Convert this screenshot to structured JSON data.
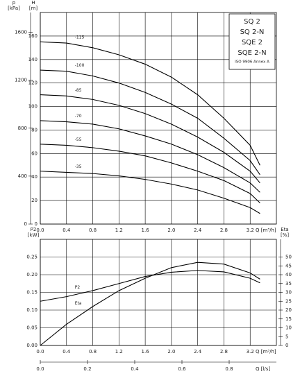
{
  "chart_data": [
    {
      "type": "line",
      "ylabel": "H",
      "ylabel_unit": "[m]",
      "y2label": "p",
      "y2label_unit": "[kPa]",
      "y2_side": "left",
      "xlabel": "Q [m³/h]",
      "annotations": [
        "SQ 2",
        "SQ 2-N",
        "SQE 2",
        "SQE 2-N",
        "ISO 9906 Annex A"
      ],
      "xlim": [
        0,
        3.6
      ],
      "xticks": [
        {
          "value": 0,
          "label": "0.0"
        },
        0.4,
        0.8,
        1.2,
        1.6,
        {
          "value": 2,
          "label": "2.0"
        },
        2.4,
        2.8,
        3.2
      ],
      "ylim": [
        0,
        180
      ],
      "yticks": [
        0,
        20,
        40,
        60,
        80,
        100,
        120,
        140,
        160
      ],
      "y2lim": [
        0,
        1765
      ],
      "y2ticks": [
        0,
        400,
        800,
        1200,
        1600
      ],
      "grid": true,
      "x": [
        0,
        0.4,
        0.8,
        1.2,
        1.6,
        2.0,
        2.4,
        2.8,
        3.2,
        3.35
      ],
      "series": [
        {
          "name": "-115",
          "color": "#000000",
          "values": [
            155,
            154,
            150,
            144,
            136,
            125,
            110,
            90,
            67,
            50
          ]
        },
        {
          "name": "-100",
          "color": "#000000",
          "values": [
            131,
            130,
            126,
            120,
            112,
            102,
            90,
            73,
            54,
            42
          ]
        },
        {
          "name": "-85",
          "color": "#000000",
          "values": [
            110,
            109,
            106,
            101,
            94,
            85,
            74,
            61,
            45,
            35
          ]
        },
        {
          "name": "-70",
          "color": "#000000",
          "values": [
            88,
            87,
            85,
            81,
            75,
            68,
            59,
            48,
            35,
            27
          ]
        },
        {
          "name": "-55",
          "color": "#000000",
          "values": [
            68,
            67,
            65,
            62,
            58,
            52,
            45,
            37,
            26,
            18
          ]
        },
        {
          "name": "-35",
          "color": "#000000",
          "values": [
            45,
            44,
            43,
            41,
            38,
            34,
            29,
            22,
            14,
            9
          ]
        }
      ]
    },
    {
      "type": "line",
      "ylabel": "P2",
      "ylabel_unit": "[kW]",
      "y2label": "Eta",
      "y2label_unit": "[%]",
      "y2_side": "right",
      "xlabel": "Q [m³/h]",
      "x2label": "Q [l/s]",
      "xlim": [
        0,
        3.6
      ],
      "xticks": [
        {
          "value": 0,
          "label": "0.0"
        },
        0.4,
        0.8,
        1.2,
        1.6,
        {
          "value": 2,
          "label": "2.0"
        },
        2.4,
        2.8,
        3.2
      ],
      "x2lim": [
        0,
        1
      ],
      "x2ticks": [
        {
          "value": 0,
          "label": "0.0"
        },
        0.2,
        0.4,
        0.6,
        0.8
      ],
      "ylim": [
        0,
        0.3
      ],
      "yticks": [
        {
          "value": 0,
          "label": "0.00"
        },
        0.05,
        {
          "value": 0.1,
          "label": "0.10"
        },
        0.15,
        {
          "value": 0.2,
          "label": "0.20"
        },
        0.25
      ],
      "y2lim": [
        0,
        60
      ],
      "y2ticks": [
        0,
        5,
        10,
        15,
        20,
        25,
        30,
        35,
        40,
        45,
        50
      ],
      "grid": true,
      "x": [
        0,
        0.4,
        0.8,
        1.2,
        1.6,
        2.0,
        2.4,
        2.8,
        3.2,
        3.35
      ],
      "series": [
        {
          "name": "P2",
          "color": "#000000",
          "values": [
            0.125,
            0.138,
            0.155,
            0.175,
            0.195,
            0.207,
            0.212,
            0.208,
            0.19,
            0.177
          ]
        },
        {
          "name": "Eta",
          "color": "#000000",
          "axis": "y2",
          "values": [
            0,
            12,
            22,
            31,
            38,
            44,
            47,
            46,
            41,
            37.5
          ]
        }
      ]
    }
  ]
}
